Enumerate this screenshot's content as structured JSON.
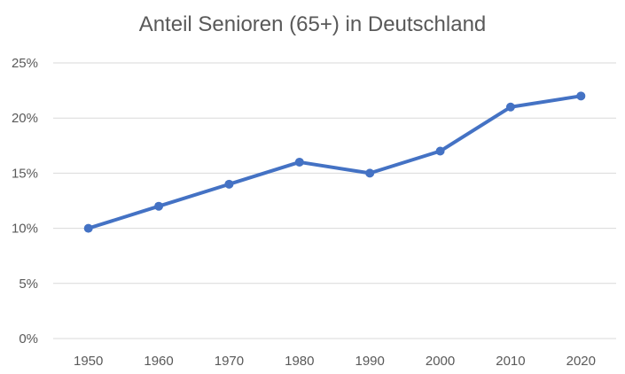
{
  "chart_data": {
    "type": "line",
    "title": "Anteil Senioren (65+) in Deutschland",
    "xlabel": "",
    "ylabel": "",
    "categories": [
      "1950",
      "1960",
      "1970",
      "1980",
      "1990",
      "2000",
      "2010",
      "2020"
    ],
    "series": [
      {
        "values": [
          10,
          12,
          14,
          16,
          15,
          17,
          21,
          22
        ]
      }
    ],
    "ylim": [
      0,
      25
    ],
    "yticks": [
      "0%",
      "5%",
      "10%",
      "15%",
      "20%",
      "25%"
    ],
    "grid": true,
    "legend": "none",
    "line_color": "#4472C4",
    "grid_color": "#D9D9D9"
  }
}
